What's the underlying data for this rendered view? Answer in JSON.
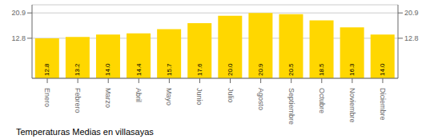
{
  "chart_data": {
    "type": "bar",
    "title": "Temperaturas Medias en villasayas",
    "categories": [
      "Enero",
      "Febrero",
      "Marzo",
      "Abril",
      "Mayo",
      "Junio",
      "Julio",
      "Agosto",
      "Septiembre",
      "Octubre",
      "Noviembre",
      "Diciembre"
    ],
    "values": [
      12.8,
      13.2,
      14.0,
      14.4,
      15.7,
      17.6,
      20.0,
      20.9,
      20.5,
      18.5,
      16.3,
      14.0
    ],
    "value_labels": [
      "12.8",
      "13.2",
      "14.0",
      "14.4",
      "15.7",
      "17.6",
      "20.0",
      "20.9",
      "20.5",
      "18.5",
      "16.3",
      "14.0"
    ],
    "data_labels": true,
    "color": "#FFD700",
    "ylim": [
      0,
      23.5
    ],
    "yticks": [
      12.8,
      20.9
    ],
    "grid": true
  }
}
